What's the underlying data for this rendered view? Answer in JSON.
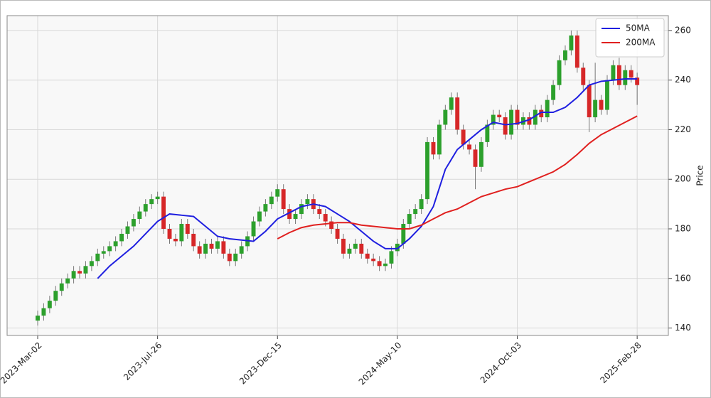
{
  "chart_data": {
    "type": "candlestick",
    "y_label": "Price",
    "xlim": [
      -25.5,
      526
    ],
    "ylim": [
      137,
      266
    ],
    "xticks": [
      {
        "value": 0,
        "label": "2023-Mar-02"
      },
      {
        "value": 100,
        "label": "2023-Jul-26"
      },
      {
        "value": 200,
        "label": "2023-Dec-15"
      },
      {
        "value": 300,
        "label": "2024-May-10"
      },
      {
        "value": 400,
        "label": "2024-Oct-03"
      },
      {
        "value": 500,
        "label": "2025-Feb-28"
      }
    ],
    "yticks": [
      140,
      160,
      180,
      200,
      220,
      240,
      260
    ],
    "grid": true,
    "legend": "upper right",
    "candles": {
      "up_color": "#2ca02c",
      "down_color": "#d62728",
      "x": [
        0,
        5,
        10,
        15,
        20,
        25,
        30,
        35,
        40,
        45,
        50,
        55,
        60,
        65,
        70,
        75,
        80,
        85,
        90,
        95,
        100,
        105,
        110,
        115,
        120,
        125,
        130,
        135,
        140,
        145,
        150,
        155,
        160,
        165,
        170,
        175,
        180,
        185,
        190,
        195,
        200,
        205,
        210,
        215,
        220,
        225,
        230,
        235,
        240,
        245,
        250,
        255,
        260,
        265,
        270,
        275,
        280,
        285,
        290,
        295,
        300,
        305,
        310,
        315,
        320,
        325,
        330,
        335,
        340,
        345,
        350,
        355,
        360,
        365,
        370,
        375,
        380,
        385,
        390,
        395,
        400,
        405,
        410,
        415,
        420,
        425,
        430,
        435,
        440,
        445,
        450,
        455,
        460,
        465,
        470,
        475,
        480,
        485,
        490,
        495,
        500
      ],
      "open": [
        143,
        145,
        148,
        151,
        155,
        158,
        160,
        163,
        162,
        165,
        167,
        170,
        171,
        173,
        175,
        178,
        181,
        184,
        187,
        190,
        192,
        193,
        180,
        176,
        175,
        182,
        178,
        173,
        170,
        174,
        172,
        175,
        170,
        167,
        170,
        173,
        177,
        183,
        187,
        190,
        193,
        196,
        188,
        184,
        186,
        190,
        192,
        188,
        186,
        183,
        180,
        176,
        170,
        172,
        174,
        170,
        168,
        167,
        165,
        166,
        171,
        174,
        182,
        186,
        188,
        192,
        215,
        210,
        222,
        228,
        233,
        220,
        214,
        212,
        205,
        215,
        222,
        226,
        225,
        218,
        228,
        222,
        225,
        222,
        228,
        225,
        232,
        238,
        248,
        252,
        258,
        245,
        238,
        225,
        232,
        228,
        240,
        246,
        238,
        244,
        241
      ],
      "high": [
        147,
        150,
        153,
        157,
        160,
        162,
        165,
        165,
        167,
        169,
        172,
        173,
        175,
        177,
        180,
        183,
        186,
        189,
        192,
        194,
        195,
        195,
        182,
        178,
        184,
        184,
        180,
        175,
        176,
        176,
        177,
        177,
        172,
        172,
        175,
        179,
        185,
        189,
        192,
        195,
        198,
        198,
        190,
        188,
        192,
        194,
        194,
        190,
        188,
        185,
        182,
        178,
        174,
        176,
        176,
        172,
        170,
        169,
        168,
        173,
        176,
        184,
        188,
        190,
        194,
        217,
        217,
        224,
        230,
        235,
        235,
        222,
        216,
        214,
        217,
        224,
        228,
        228,
        227,
        230,
        230,
        227,
        227,
        230,
        230,
        234,
        240,
        250,
        254,
        260,
        260,
        247,
        240,
        247,
        234,
        242,
        248,
        249,
        246,
        246,
        243
      ],
      "low": [
        141,
        143,
        146,
        149,
        153,
        156,
        158,
        160,
        160,
        163,
        165,
        168,
        169,
        171,
        173,
        176,
        179,
        182,
        185,
        188,
        190,
        178,
        174,
        173,
        173,
        176,
        171,
        168,
        168,
        170,
        170,
        168,
        165,
        165,
        168,
        171,
        175,
        181,
        185,
        188,
        191,
        186,
        182,
        182,
        184,
        188,
        186,
        184,
        181,
        178,
        174,
        168,
        168,
        170,
        168,
        166,
        165,
        163,
        163,
        164,
        169,
        172,
        180,
        184,
        186,
        190,
        208,
        208,
        220,
        226,
        218,
        212,
        210,
        196,
        203,
        213,
        220,
        223,
        216,
        216,
        220,
        220,
        220,
        220,
        223,
        223,
        230,
        236,
        246,
        250,
        243,
        236,
        219,
        223,
        226,
        226,
        238,
        236,
        236,
        239,
        230
      ],
      "close": [
        145,
        148,
        151,
        155,
        158,
        160,
        163,
        162,
        165,
        167,
        170,
        171,
        173,
        175,
        178,
        181,
        184,
        187,
        190,
        192,
        193,
        180,
        176,
        175,
        182,
        178,
        173,
        170,
        174,
        172,
        175,
        170,
        167,
        170,
        173,
        177,
        183,
        187,
        190,
        193,
        196,
        188,
        184,
        186,
        190,
        192,
        188,
        186,
        183,
        180,
        176,
        170,
        172,
        174,
        170,
        168,
        167,
        165,
        166,
        171,
        174,
        182,
        186,
        188,
        192,
        215,
        210,
        222,
        228,
        233,
        220,
        214,
        212,
        205,
        215,
        222,
        226,
        225,
        218,
        228,
        222,
        225,
        222,
        228,
        225,
        232,
        238,
        248,
        252,
        258,
        245,
        238,
        225,
        232,
        228,
        240,
        246,
        238,
        244,
        241,
        238
      ]
    },
    "series": [
      {
        "name": "50MA",
        "color": "#1f1fe0",
        "x": [
          50,
          60,
          70,
          80,
          90,
          100,
          110,
          120,
          130,
          140,
          150,
          160,
          170,
          180,
          190,
          200,
          210,
          220,
          230,
          240,
          250,
          260,
          270,
          280,
          290,
          300,
          310,
          320,
          330,
          340,
          350,
          360,
          370,
          380,
          390,
          400,
          410,
          420,
          430,
          440,
          450,
          460,
          470,
          480,
          490,
          500
        ],
        "values": [
          160,
          165,
          169,
          173,
          178,
          183,
          186,
          185.5,
          185,
          181,
          177,
          176,
          175.5,
          175,
          179,
          184,
          186.5,
          189,
          190,
          189,
          186,
          183,
          179,
          175,
          172,
          172,
          176,
          181,
          189,
          204,
          212,
          216,
          220,
          223,
          222,
          222.5,
          224,
          227,
          227,
          229,
          233,
          238,
          239.5,
          240,
          240.5,
          240.5
        ]
      },
      {
        "name": "200MA",
        "color": "#e0201f",
        "x": [
          200,
          210,
          220,
          230,
          240,
          250,
          260,
          270,
          280,
          290,
          300,
          310,
          320,
          330,
          340,
          350,
          360,
          370,
          380,
          390,
          400,
          410,
          420,
          430,
          440,
          450,
          460,
          470,
          480,
          490,
          500
        ],
        "values": [
          176,
          178.5,
          180.5,
          181.5,
          182,
          182.5,
          182.5,
          181.5,
          181,
          180.5,
          180,
          180,
          181.5,
          184,
          186.5,
          188,
          190.5,
          193,
          194.5,
          196,
          197,
          199,
          201,
          203,
          206,
          210,
          214.5,
          218,
          220.5,
          223,
          225.5
        ]
      }
    ]
  }
}
